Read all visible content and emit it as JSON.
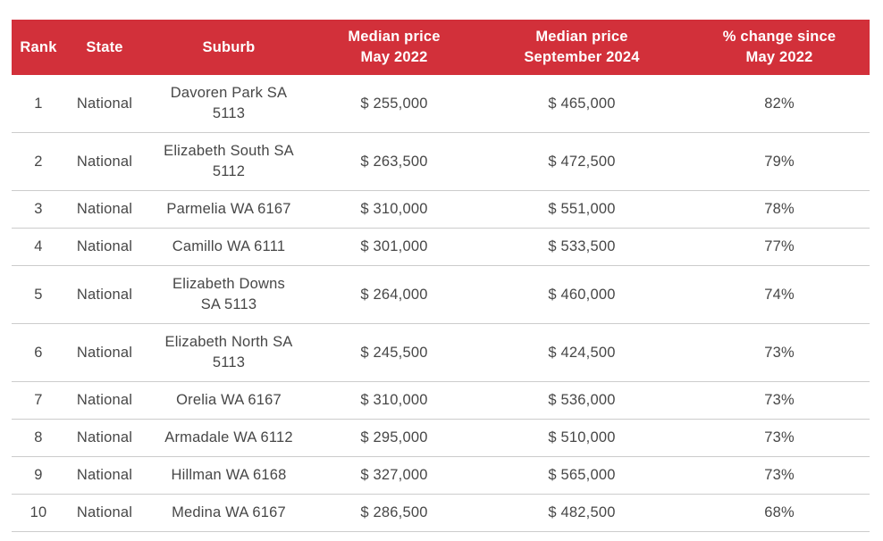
{
  "theme": {
    "header_bg": "#d2303a",
    "header_text": "#ffffff",
    "body_text": "#474747",
    "divider": "#cccccc",
    "page_bg": "#ffffff"
  },
  "chart_data": {
    "type": "table",
    "columns": [
      {
        "key": "rank",
        "label": "Rank"
      },
      {
        "key": "state",
        "label": "State"
      },
      {
        "key": "suburb",
        "label": "Suburb"
      },
      {
        "key": "may",
        "label": "Median price\nMay 2022"
      },
      {
        "key": "sep",
        "label": "Median price\nSeptember 2024"
      },
      {
        "key": "pct",
        "label": "% change since\nMay 2022"
      }
    ],
    "rows": [
      {
        "rank": "1",
        "state": "National",
        "suburb": "Davoren Park SA\n5113",
        "may": "$ 255,000",
        "sep": "$ 465,000",
        "pct": "82%"
      },
      {
        "rank": "2",
        "state": "National",
        "suburb": "Elizabeth South SA\n5112",
        "may": "$ 263,500",
        "sep": "$ 472,500",
        "pct": "79%"
      },
      {
        "rank": "3",
        "state": "National",
        "suburb": "Parmelia WA 6167",
        "may": "$ 310,000",
        "sep": "$ 551,000",
        "pct": "78%"
      },
      {
        "rank": "4",
        "state": "National",
        "suburb": "Camillo WA 6111",
        "may": "$ 301,000",
        "sep": "$ 533,500",
        "pct": "77%"
      },
      {
        "rank": "5",
        "state": "National",
        "suburb": "Elizabeth Downs\nSA 5113",
        "may": "$ 264,000",
        "sep": "$ 460,000",
        "pct": "74%"
      },
      {
        "rank": "6",
        "state": "National",
        "suburb": "Elizabeth North SA\n5113",
        "may": "$ 245,500",
        "sep": "$ 424,500",
        "pct": "73%"
      },
      {
        "rank": "7",
        "state": "National",
        "suburb": "Orelia WA 6167",
        "may": "$ 310,000",
        "sep": "$ 536,000",
        "pct": "73%"
      },
      {
        "rank": "8",
        "state": "National",
        "suburb": "Armadale WA 6112",
        "may": "$ 295,000",
        "sep": "$ 510,000",
        "pct": "73%"
      },
      {
        "rank": "9",
        "state": "National",
        "suburb": "Hillman WA 6168",
        "may": "$ 327,000",
        "sep": "$ 565,000",
        "pct": "73%"
      },
      {
        "rank": "10",
        "state": "National",
        "suburb": "Medina WA 6167",
        "may": "$ 286,500",
        "sep": "$ 482,500",
        "pct": "68%"
      }
    ]
  }
}
